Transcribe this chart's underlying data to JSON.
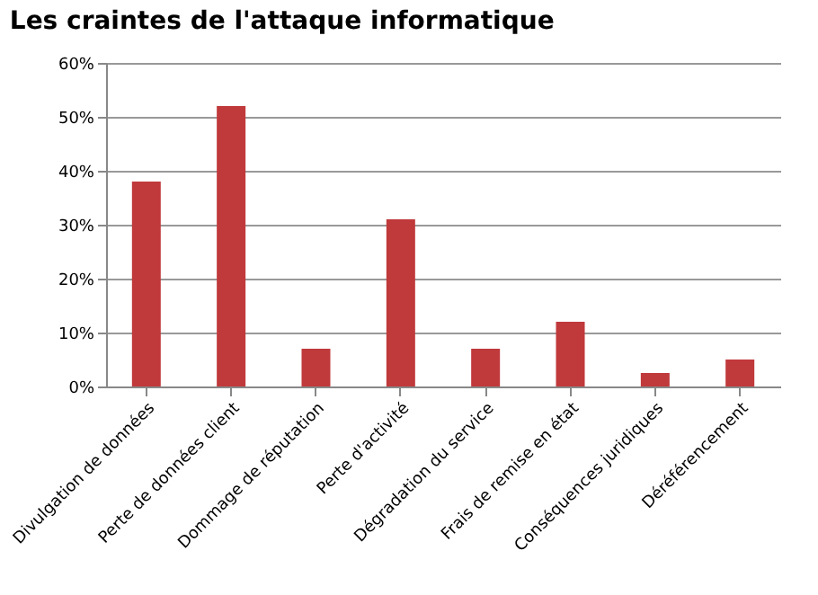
{
  "chart_data": {
    "type": "bar",
    "title": "Les craintes de l'attaque informatique",
    "categories": [
      "Divulgation de données",
      "Perte de données client",
      "Dommage de réputation",
      "Perte d'activité",
      "Dégradation du service",
      "Frais de remise en état",
      "Conséquences juridiques",
      "Déréférencement"
    ],
    "values": [
      38,
      52,
      7,
      31,
      7,
      12,
      2.5,
      5
    ],
    "color": "#c0393b",
    "ylim": [
      0,
      60
    ],
    "yticks": [
      {
        "value": 0,
        "label": "0%"
      },
      {
        "value": 10,
        "label": "10%"
      },
      {
        "value": 20,
        "label": "20%"
      },
      {
        "value": 30,
        "label": "30%"
      },
      {
        "value": 40,
        "label": "40%"
      },
      {
        "value": 50,
        "label": "50%"
      },
      {
        "value": 60,
        "label": "60%"
      }
    ],
    "grid": "y"
  }
}
